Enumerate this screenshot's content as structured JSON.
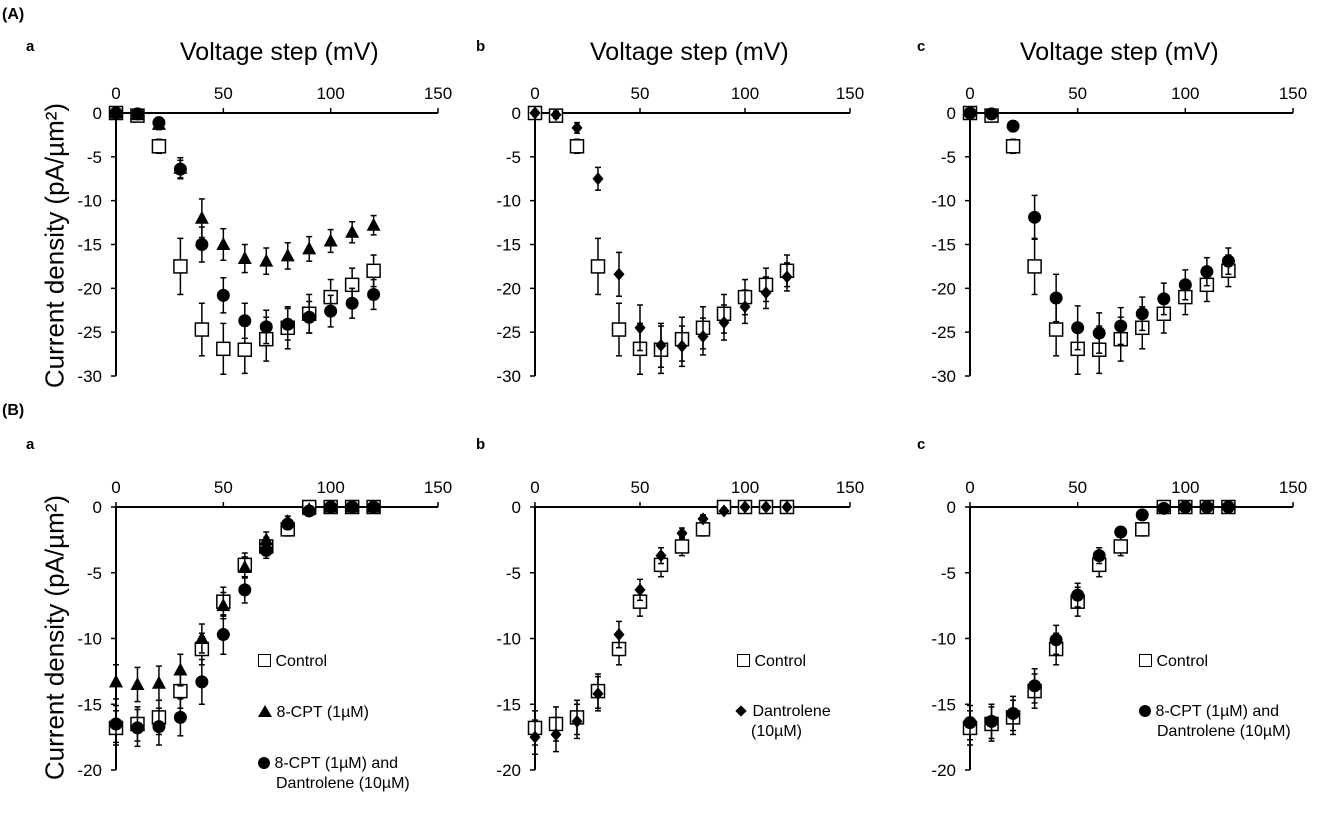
{
  "figure": {
    "panel_A": "(A)",
    "panel_B": "(B)",
    "y_title_A": "Current density (pA/µm²)",
    "y_title_B": "Current density (pA/µm²)"
  },
  "legends": {
    "Ba": {
      "control": "Control",
      "cpt": "8-CPT (1µM)",
      "combo1": "8-CPT (1µM) and",
      "combo2": "Dantrolene (10µM)"
    },
    "Bb": {
      "control": "Control",
      "dan1": "Dantrolene",
      "dan2": "(10µM)"
    },
    "Bc": {
      "control": "Control",
      "combo1": "8-CPT (1µM) and",
      "combo2": "Dantrolene (10µM)"
    }
  },
  "colors": {
    "marker": "#000000",
    "axis": "#000000",
    "open_fill": "#ffffff"
  },
  "chart_data": [
    {
      "id": "Aa",
      "type": "scatter",
      "subplot_label": "a",
      "xlabel": "Voltage step (mV)",
      "ylabel": "",
      "xlim": [
        0,
        150
      ],
      "ylim": [
        -30,
        0
      ],
      "xticks": [
        0,
        50,
        100,
        150
      ],
      "yticks": [
        0,
        -5,
        -10,
        -15,
        -20,
        -25,
        -30
      ],
      "grid": false,
      "series": [
        {
          "name": "8-CPT (1µM)",
          "marker": "triangle",
          "x": [
            0,
            10,
            20,
            30,
            40,
            50,
            60,
            70,
            80,
            90,
            100,
            110,
            120
          ],
          "y": [
            0,
            -0.2,
            -1.3,
            -6.3,
            -12.0,
            -15.0,
            -16.6,
            -16.9,
            -16.3,
            -15.5,
            -14.6,
            -13.6,
            -12.8
          ],
          "err": [
            0.3,
            0.4,
            0.6,
            1.2,
            2.2,
            1.8,
            1.6,
            1.5,
            1.5,
            1.4,
            1.3,
            1.2,
            1.1
          ]
        },
        {
          "name": "8-CPT (1µM) and Dantrolene (10µM)",
          "marker": "circle",
          "x": [
            0,
            10,
            20,
            30,
            40,
            50,
            60,
            70,
            80,
            90,
            100,
            110,
            120
          ],
          "y": [
            0,
            -0.1,
            -1.1,
            -6.4,
            -15.0,
            -20.8,
            -23.7,
            -24.4,
            -24.1,
            -23.3,
            -22.6,
            -21.7,
            -20.7
          ],
          "err": [
            0.3,
            0.4,
            0.6,
            1.0,
            2.0,
            2.0,
            2.0,
            1.9,
            1.8,
            1.8,
            1.8,
            1.7,
            1.7
          ]
        },
        {
          "name": "Control",
          "marker": "square-open",
          "x": [
            0,
            10,
            20,
            30,
            40,
            50,
            60,
            70,
            80,
            90,
            100,
            110,
            120
          ],
          "y": [
            0,
            -0.3,
            -3.8,
            -17.5,
            -24.7,
            -26.9,
            -27.0,
            -25.8,
            -24.5,
            -22.9,
            -21.0,
            -19.6,
            -18.0
          ],
          "err": [
            0.3,
            0.5,
            0.8,
            3.2,
            3.0,
            2.9,
            2.7,
            2.5,
            2.4,
            2.2,
            2.0,
            1.9,
            1.8
          ]
        }
      ]
    },
    {
      "id": "Ab",
      "type": "scatter",
      "subplot_label": "b",
      "xlabel": "Voltage step (mV)",
      "ylabel": "",
      "xlim": [
        0,
        150
      ],
      "ylim": [
        -30,
        0
      ],
      "xticks": [
        0,
        50,
        100,
        150
      ],
      "yticks": [
        0,
        -5,
        -10,
        -15,
        -20,
        -25,
        -30
      ],
      "grid": false,
      "series": [
        {
          "name": "Dantrolene (10µM)",
          "marker": "diamond",
          "x": [
            0,
            10,
            20,
            30,
            40,
            50,
            60,
            70,
            80,
            90,
            100,
            110,
            120
          ],
          "y": [
            0,
            -0.2,
            -1.7,
            -7.5,
            -18.4,
            -24.5,
            -26.5,
            -26.6,
            -25.5,
            -23.9,
            -22.1,
            -20.5,
            -18.7
          ],
          "err": [
            0.3,
            0.4,
            0.6,
            1.3,
            2.5,
            2.6,
            2.5,
            2.3,
            2.1,
            2.0,
            1.9,
            1.8,
            1.6
          ]
        },
        {
          "name": "Control",
          "marker": "square-open",
          "x": [
            0,
            10,
            20,
            30,
            40,
            50,
            60,
            70,
            80,
            90,
            100,
            110,
            120
          ],
          "y": [
            0,
            -0.3,
            -3.8,
            -17.5,
            -24.7,
            -26.9,
            -27.0,
            -25.8,
            -24.5,
            -22.9,
            -21.0,
            -19.6,
            -18.0
          ],
          "err": [
            0.3,
            0.5,
            0.8,
            3.2,
            3.0,
            2.9,
            2.7,
            2.5,
            2.4,
            2.2,
            2.0,
            1.9,
            1.8
          ]
        }
      ]
    },
    {
      "id": "Ac",
      "type": "scatter",
      "subplot_label": "c",
      "xlabel": "Voltage step (mV)",
      "ylabel": "",
      "xlim": [
        0,
        150
      ],
      "ylim": [
        -30,
        0
      ],
      "xticks": [
        0,
        50,
        100,
        150
      ],
      "yticks": [
        0,
        -5,
        -10,
        -15,
        -20,
        -25,
        -30
      ],
      "grid": false,
      "series": [
        {
          "name": "8-CPT (1µM) and Dantrolene (10µM)",
          "marker": "circle",
          "x": [
            0,
            10,
            20,
            30,
            40,
            50,
            60,
            70,
            80,
            90,
            100,
            110,
            120
          ],
          "y": [
            0,
            -0.1,
            -1.5,
            -11.9,
            -21.1,
            -24.5,
            -25.1,
            -24.3,
            -22.9,
            -21.2,
            -19.6,
            -18.1,
            -16.9
          ],
          "err": [
            0.3,
            0.4,
            0.6,
            2.5,
            2.7,
            2.5,
            2.3,
            2.1,
            1.9,
            1.8,
            1.7,
            1.6,
            1.5
          ]
        },
        {
          "name": "Control",
          "marker": "square-open",
          "x": [
            0,
            10,
            20,
            30,
            40,
            50,
            60,
            70,
            80,
            90,
            100,
            110,
            120
          ],
          "y": [
            0,
            -0.3,
            -3.8,
            -17.5,
            -24.7,
            -26.9,
            -27.0,
            -25.8,
            -24.5,
            -22.9,
            -21.0,
            -19.6,
            -18.0
          ],
          "err": [
            0.3,
            0.5,
            0.8,
            3.2,
            3.0,
            2.9,
            2.7,
            2.5,
            2.4,
            2.2,
            2.0,
            1.9,
            1.8
          ]
        }
      ]
    },
    {
      "id": "Ba",
      "type": "scatter",
      "subplot_label": "a",
      "xlabel": "",
      "ylabel": "",
      "xlim": [
        0,
        150
      ],
      "ylim": [
        -20,
        0
      ],
      "xticks": [
        0,
        50,
        100,
        150
      ],
      "yticks": [
        0,
        -5,
        -10,
        -15,
        -20
      ],
      "grid": false,
      "series": [
        {
          "name": "8-CPT (1µM)",
          "marker": "triangle",
          "x": [
            0,
            10,
            20,
            30,
            40,
            50,
            60,
            70,
            80,
            90,
            100,
            110,
            120
          ],
          "y": [
            -13.3,
            -13.5,
            -13.4,
            -12.4,
            -10.0,
            -7.5,
            -4.6,
            -2.5,
            -1.1,
            -0.2,
            0,
            0,
            0
          ],
          "err": [
            1.3,
            1.3,
            1.3,
            1.2,
            1.1,
            1.0,
            0.8,
            0.6,
            0.4,
            0.2,
            0.2,
            0.2,
            0.2
          ]
        },
        {
          "name": "8-CPT (1µM) and Dantrolene (10µM)",
          "marker": "circle",
          "x": [
            0,
            10,
            20,
            30,
            40,
            50,
            60,
            70,
            80,
            90,
            100,
            110,
            120
          ],
          "y": [
            -16.5,
            -16.8,
            -16.7,
            -16.0,
            -13.3,
            -9.7,
            -6.3,
            -3.3,
            -1.3,
            -0.3,
            0,
            0,
            0
          ],
          "err": [
            1.4,
            1.4,
            1.4,
            1.4,
            1.7,
            1.5,
            1.0,
            0.6,
            0.4,
            0.2,
            0.2,
            0.2,
            0.2
          ]
        },
        {
          "name": "Control",
          "marker": "square-open",
          "x": [
            0,
            10,
            20,
            30,
            40,
            50,
            60,
            70,
            80,
            90,
            100,
            110,
            120
          ],
          "y": [
            -16.8,
            -16.5,
            -16.0,
            -14.0,
            -10.8,
            -7.2,
            -4.4,
            -3.0,
            -1.7,
            0,
            0,
            0,
            0
          ],
          "err": [
            1.3,
            1.3,
            1.3,
            1.3,
            1.2,
            1.1,
            0.9,
            0.7,
            0.5,
            0.2,
            0.2,
            0.2,
            0.2
          ]
        }
      ]
    },
    {
      "id": "Bb",
      "type": "scatter",
      "subplot_label": "b",
      "xlabel": "",
      "ylabel": "",
      "xlim": [
        0,
        150
      ],
      "ylim": [
        -20,
        0
      ],
      "xticks": [
        0,
        50,
        100,
        150
      ],
      "yticks": [
        0,
        -5,
        -10,
        -15,
        -20
      ],
      "grid": false,
      "series": [
        {
          "name": "Dantrolene (10µM)",
          "marker": "diamond",
          "x": [
            0,
            10,
            20,
            30,
            40,
            50,
            60,
            70,
            80,
            90,
            100,
            110,
            120
          ],
          "y": [
            -17.5,
            -17.3,
            -16.3,
            -14.2,
            -9.7,
            -6.3,
            -3.7,
            -2.0,
            -0.9,
            -0.3,
            0,
            0,
            0
          ],
          "err": [
            1.3,
            1.3,
            1.3,
            1.3,
            1.0,
            0.8,
            0.6,
            0.4,
            0.3,
            0.2,
            0.2,
            0.2,
            0.2
          ]
        },
        {
          "name": "Control",
          "marker": "square-open",
          "x": [
            0,
            10,
            20,
            30,
            40,
            50,
            60,
            70,
            80,
            90,
            100,
            110,
            120
          ],
          "y": [
            -16.8,
            -16.5,
            -16.0,
            -14.0,
            -10.8,
            -7.2,
            -4.4,
            -3.0,
            -1.7,
            0,
            0,
            0,
            0
          ],
          "err": [
            1.3,
            1.3,
            1.3,
            1.3,
            1.2,
            1.1,
            0.9,
            0.7,
            0.5,
            0.2,
            0.2,
            0.2,
            0.2
          ]
        }
      ]
    },
    {
      "id": "Bc",
      "type": "scatter",
      "subplot_label": "c",
      "xlabel": "",
      "ylabel": "",
      "xlim": [
        0,
        150
      ],
      "ylim": [
        -20,
        0
      ],
      "xticks": [
        0,
        50,
        100,
        150
      ],
      "yticks": [
        0,
        -5,
        -10,
        -15,
        -20
      ],
      "grid": false,
      "series": [
        {
          "name": "8-CPT (1µM) and Dantrolene (10µM)",
          "marker": "circle",
          "x": [
            0,
            10,
            20,
            30,
            40,
            50,
            60,
            70,
            80,
            90,
            100,
            110,
            120
          ],
          "y": [
            -16.4,
            -16.3,
            -15.7,
            -13.6,
            -10.1,
            -6.7,
            -3.7,
            -1.9,
            -0.6,
            -0.1,
            0,
            0,
            0
          ],
          "err": [
            1.3,
            1.3,
            1.3,
            1.3,
            1.1,
            0.9,
            0.6,
            0.4,
            0.3,
            0.2,
            0.2,
            0.2,
            0.2
          ]
        },
        {
          "name": "Control",
          "marker": "square-open",
          "x": [
            0,
            10,
            20,
            30,
            40,
            50,
            60,
            70,
            80,
            90,
            100,
            110,
            120
          ],
          "y": [
            -16.8,
            -16.5,
            -16.0,
            -14.0,
            -10.8,
            -7.2,
            -4.4,
            -3.0,
            -1.7,
            0,
            0,
            0,
            0
          ],
          "err": [
            1.3,
            1.3,
            1.3,
            1.3,
            1.2,
            1.1,
            0.9,
            0.7,
            0.5,
            0.2,
            0.2,
            0.2,
            0.2
          ]
        }
      ]
    }
  ]
}
